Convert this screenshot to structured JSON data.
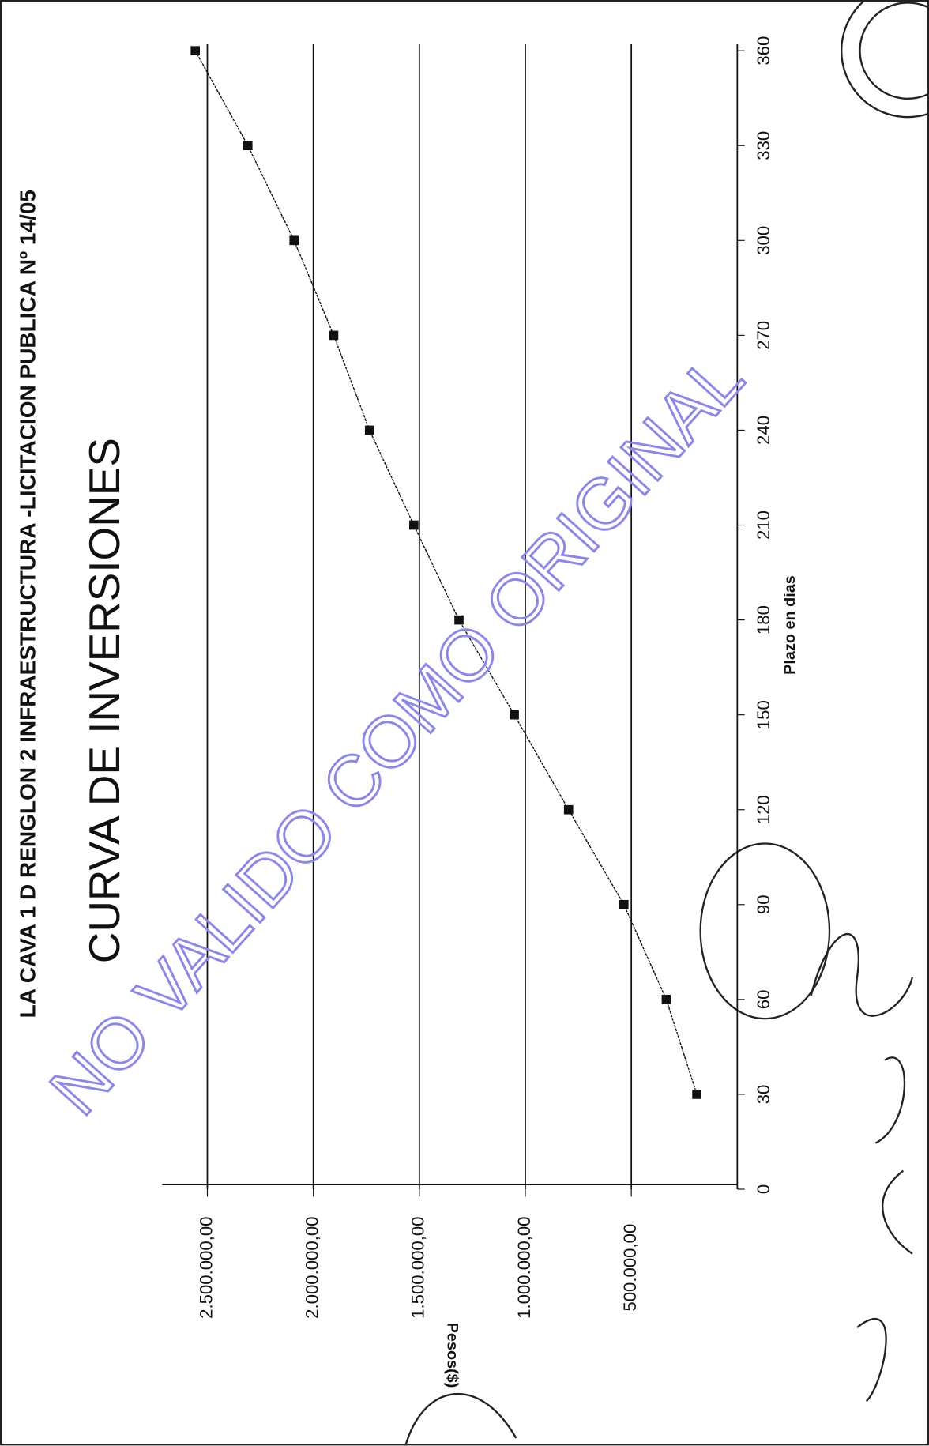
{
  "chart_data": {
    "type": "line",
    "title": "LA CAVA 1 D  RENGLON 2 INFRAESTRUCTURA -LICITACION PUBLICA Nº 14/05",
    "subtitle": "CURVA DE INVERSIONES",
    "x_label": "Plazo en dias",
    "y_label": "Pesos($)",
    "watermark": "NO VALIDO COMO ORIGINAL",
    "x": [
      30,
      60,
      90,
      120,
      150,
      180,
      210,
      240,
      270,
      300,
      330,
      360
    ],
    "values": [
      191000,
      335000,
      535000,
      796000,
      1052000,
      1313000,
      1526000,
      1735000,
      1904000,
      2091000,
      2309000,
      2557000
    ],
    "color": "#111111",
    "xlim": [
      0,
      360
    ],
    "xticks": [
      0,
      30,
      60,
      90,
      120,
      150,
      180,
      210,
      240,
      270,
      300,
      330,
      360
    ],
    "ylim": [
      0,
      2713000
    ],
    "yticks": [
      {
        "value": 500000,
        "label": "500.000,00"
      },
      {
        "value": 1000000,
        "label": "1.000.000,00"
      },
      {
        "value": 1500000,
        "label": "1.500.000,00"
      },
      {
        "value": 2000000,
        "label": "2.000.000,00"
      },
      {
        "value": 2500000,
        "label": "2.500.000,00"
      }
    ],
    "grid": true
  }
}
